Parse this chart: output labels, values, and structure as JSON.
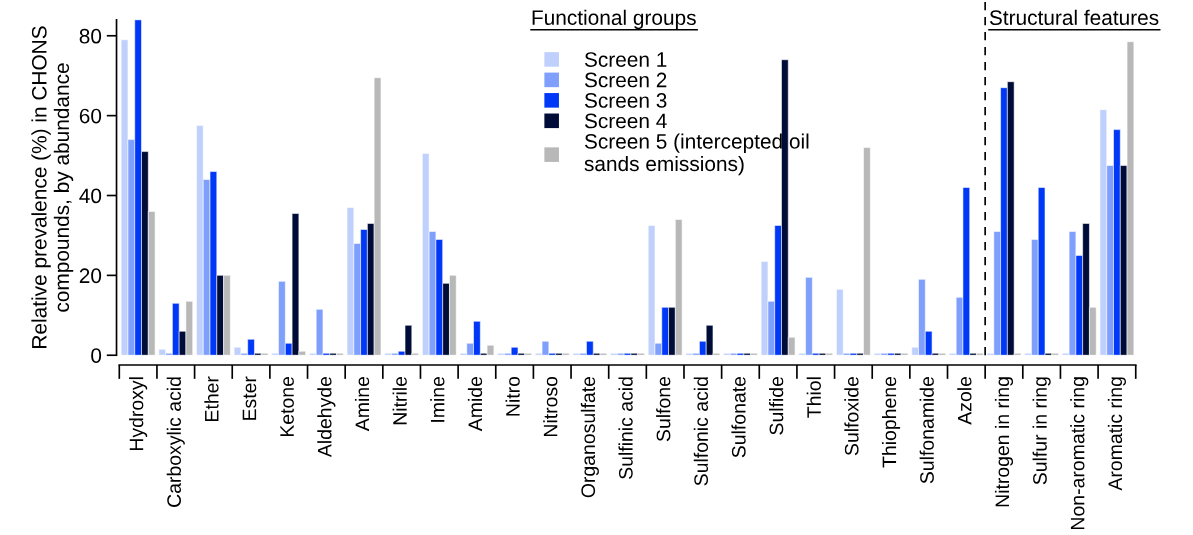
{
  "chart_data": {
    "type": "bar",
    "ylabel": "Relative prevalence (%) in CHONS\ncompounds, by abundance",
    "categories": [
      "Hydroxyl",
      "Carboxylic acid",
      "Ether",
      "Ester",
      "Ketone",
      "Aldehyde",
      "Amine",
      "Nitrile",
      "Imine",
      "Amide",
      "Nitro",
      "Nitroso",
      "Organosulfate",
      "Sulfinic acid",
      "Sulfone",
      "Sulfonic acid",
      "Sulfonate",
      "Sulfide",
      "Thiol",
      "Sulfoxide",
      "Thiophene",
      "Sulfonamide",
      "Azole",
      "Nitrogen in ring",
      "Sulfur in ring",
      "Non-aromatic ring",
      "Aromatic ring"
    ],
    "series": [
      {
        "name": "Screen 1",
        "color": "#c0d0fc",
        "values": [
          79,
          1.5,
          57.5,
          2,
          0.5,
          0.5,
          37,
          0.5,
          50.5,
          0.5,
          0.5,
          0.5,
          0.5,
          0.5,
          32.5,
          0.5,
          0.5,
          23.5,
          0.5,
          16.5,
          0.5,
          2,
          0.5,
          0.5,
          0.5,
          0.5,
          61.5
        ]
      },
      {
        "name": "Screen 2",
        "color": "#7f9ffc",
        "values": [
          54,
          0.5,
          44,
          0.5,
          18.5,
          11.5,
          28,
          0.5,
          31,
          3,
          0.5,
          3.5,
          0.5,
          0.5,
          3,
          0.5,
          0.5,
          13.5,
          19.5,
          0.5,
          0.5,
          19,
          14.5,
          31,
          29,
          31,
          47.5
        ]
      },
      {
        "name": "Screen 3",
        "color": "#0038f8",
        "values": [
          84,
          13,
          46,
          4,
          3,
          0.5,
          31.5,
          1,
          29,
          8.5,
          2,
          0.5,
          3.5,
          0.5,
          12,
          3.5,
          0.5,
          32.5,
          0.5,
          0.5,
          0.5,
          6,
          42,
          67,
          42,
          25,
          56.5
        ]
      },
      {
        "name": "Screen 4",
        "color": "#000c38",
        "values": [
          51,
          6,
          20,
          0.5,
          35.5,
          0.5,
          33,
          7.5,
          18,
          0.5,
          0.5,
          0.5,
          0.5,
          0.5,
          12,
          7.5,
          0.5,
          74,
          0.5,
          0.5,
          0.5,
          0.5,
          0.5,
          68.5,
          0.5,
          33,
          47.5
        ]
      },
      {
        "name": "Screen 5 (intercepted oil\nsands emissions)",
        "color": "#b8b8b8",
        "values": [
          36,
          13.5,
          20,
          0.5,
          1,
          0.5,
          69.5,
          0.5,
          20,
          2.5,
          0.5,
          0.5,
          0.5,
          0.5,
          34,
          0.5,
          0.5,
          4.5,
          0.5,
          52,
          0.5,
          0.5,
          0.5,
          0.5,
          0.5,
          12,
          78.5
        ]
      }
    ],
    "ylim": [
      0,
      84
    ],
    "yticks": [
      0,
      20,
      40,
      60,
      80
    ],
    "annotations": [
      "Functional groups",
      "Structural features"
    ],
    "legend": "top",
    "grid": false
  }
}
